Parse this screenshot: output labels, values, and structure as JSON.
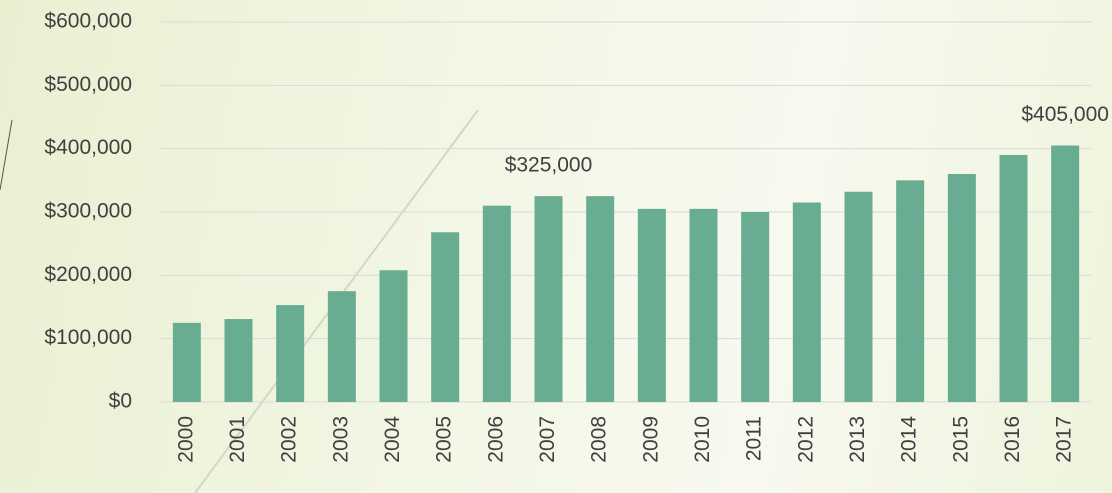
{
  "chart_data": {
    "type": "bar",
    "categories": [
      "2000",
      "2001",
      "2002",
      "2003",
      "2004",
      "2005",
      "2006",
      "2007",
      "2008",
      "2009",
      "2010",
      "2011",
      "2012",
      "2013",
      "2014",
      "2015",
      "2016",
      "2017"
    ],
    "values": [
      125000,
      131000,
      153000,
      175000,
      208000,
      268000,
      310000,
      325000,
      325000,
      305000,
      305000,
      300000,
      315000,
      332000,
      350000,
      360000,
      390000,
      405000
    ],
    "value_labels": [
      null,
      null,
      null,
      null,
      null,
      null,
      null,
      "$325,000",
      null,
      null,
      null,
      null,
      null,
      null,
      null,
      null,
      null,
      "$405,000"
    ],
    "color": "#68ad91",
    "ylim": [
      0,
      600000
    ],
    "yticks": [
      {
        "value": 0,
        "label": "$0"
      },
      {
        "value": 100000,
        "label": "$100,000"
      },
      {
        "value": 200000,
        "label": "$200,000"
      },
      {
        "value": 300000,
        "label": "$300,000"
      },
      {
        "value": 400000,
        "label": "$400,000"
      },
      {
        "value": 500000,
        "label": "$500,000"
      },
      {
        "value": 600000,
        "label": "$600,000"
      }
    ],
    "grid": true
  }
}
